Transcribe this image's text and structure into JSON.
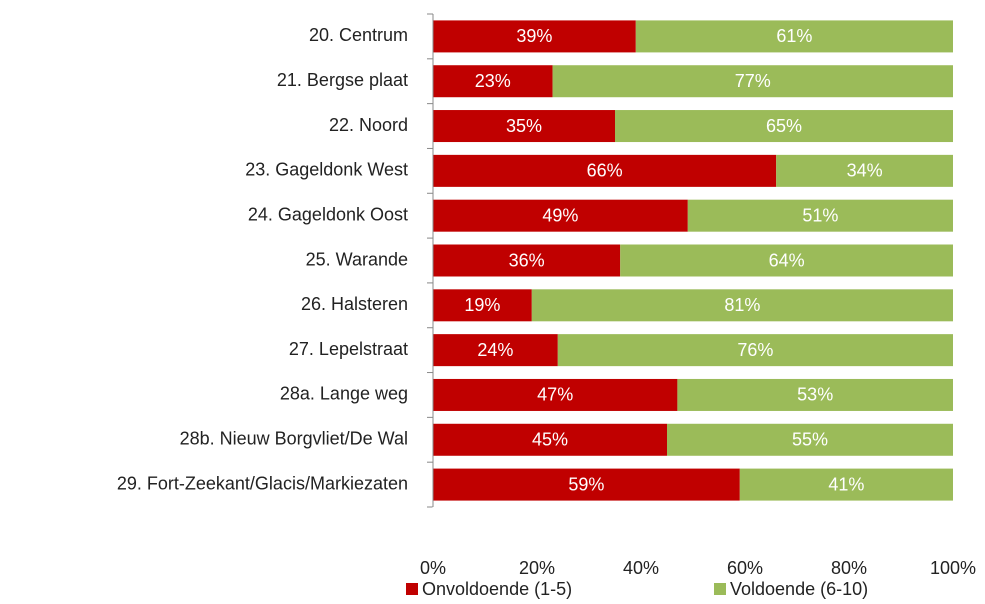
{
  "chart_data": {
    "type": "stacked-barh",
    "categories": [
      "20. Centrum",
      "21. Bergse plaat",
      "22. Noord",
      "23. Gageldonk West",
      "24. Gageldonk Oost",
      "25. Warande",
      "26. Halsteren",
      "27. Lepelstraat",
      "28a. Lange weg",
      "28b. Nieuw Borgvliet/De Wal",
      "29. Fort-Zeekant/Glacis/Markiezaten"
    ],
    "series": [
      {
        "name": "Onvoldoende (1-5)",
        "color": "#c00000",
        "values": [
          39,
          23,
          35,
          66,
          49,
          36,
          19,
          24,
          47,
          45,
          59
        ],
        "value_labels": [
          "39%",
          "23%",
          "35%",
          "66%",
          "49%",
          "36%",
          "19%",
          "24%",
          "47%",
          "45%",
          "59%"
        ]
      },
      {
        "name": "Voldoende (6-10)",
        "color": "#9bbb59",
        "values": [
          61,
          77,
          65,
          34,
          51,
          64,
          81,
          76,
          53,
          55,
          41
        ],
        "value_labels": [
          "61%",
          "77%",
          "65%",
          "34%",
          "51%",
          "64%",
          "81%",
          "76%",
          "53%",
          "55%",
          "41%"
        ]
      }
    ],
    "xlim": [
      0,
      100
    ],
    "xticks": [
      {
        "value": 0,
        "label": "0%"
      },
      {
        "value": 20,
        "label": "20%"
      },
      {
        "value": 40,
        "label": "40%"
      },
      {
        "value": 60,
        "label": "60%"
      },
      {
        "value": 80,
        "label": "80%"
      },
      {
        "value": 100,
        "label": "100%"
      }
    ],
    "legend": "bottom"
  }
}
